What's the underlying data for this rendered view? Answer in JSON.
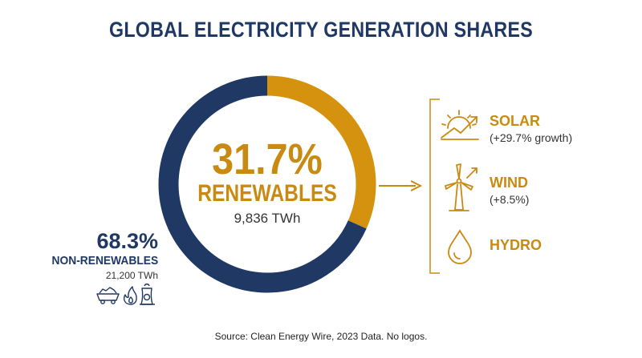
{
  "chart_data": {
    "type": "pie",
    "title": "GLOBAL ELECTRICITY GENERATION SHARES",
    "slices": [
      {
        "label": "RENEWABLES",
        "value": 31.7,
        "display": "31.7%",
        "energy": "9,836 TWh",
        "color": "#d4920f"
      },
      {
        "label": "NON-RENEWABLES",
        "value": 68.3,
        "display": "68.3%",
        "energy": "21,200 TWh",
        "color": "#1f3864"
      }
    ],
    "renewable_sources": [
      {
        "name": "SOLAR",
        "note": "(+29.7% growth)",
        "icon": "solar-icon"
      },
      {
        "name": "WIND",
        "note": "(+8.5%)",
        "icon": "wind-turbine-icon"
      },
      {
        "name": "HYDRO",
        "note": "",
        "icon": "water-drop-icon"
      }
    ],
    "nonrenewable_icons": [
      "coal-cart-icon",
      "flame-icon",
      "nuclear-plant-icon"
    ]
  },
  "source": "Source: Clean Energy Wire, 2023 Data. No logos."
}
